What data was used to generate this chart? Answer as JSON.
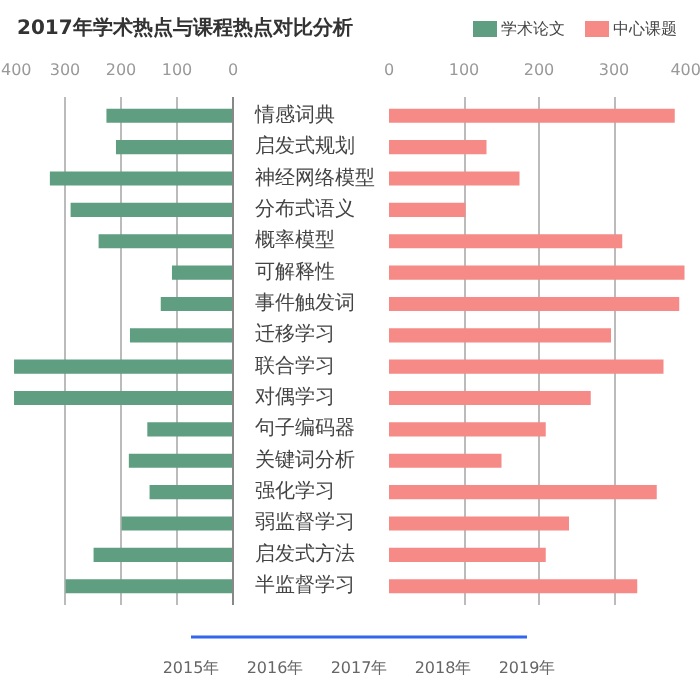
{
  "chart_data": [
    {
      "type": "bar",
      "orientation": "horizontal",
      "title": "2017年学术热点与课程热点对比分析",
      "categories": [
        "情感词典",
        "启发式规划",
        "神经网络模型",
        "分布式语义",
        "概率模型",
        "可解释性",
        "事件触发词",
        "迁移学习",
        "联合学习",
        "对偶学习",
        "句子编码器",
        "关键词分析",
        "强化学习",
        "弱监督学习",
        "启发式方法",
        "半监督学习"
      ],
      "xlim": [
        400,
        0
      ],
      "xticks": [
        400,
        300,
        200,
        100,
        0
      ],
      "series": [
        {
          "name": "学术论文",
          "color": "#5f9e80",
          "values": [
            226,
            209,
            327,
            290,
            240,
            109,
            129,
            184,
            391,
            391,
            153,
            186,
            149,
            199,
            249,
            299
          ]
        }
      ],
      "grid": "x",
      "legend": "top right",
      "annotations": [
        "2015年",
        "2016年",
        "2017年",
        "2018年",
        "2019年"
      ]
    },
    {
      "type": "bar",
      "orientation": "horizontal",
      "categories": [
        null,
        null,
        null,
        null,
        null,
        null,
        null,
        null,
        null,
        null,
        null,
        null,
        null,
        null,
        null,
        null
      ],
      "xlim": [
        0,
        400
      ],
      "xticks": [
        0,
        100,
        200,
        300,
        400
      ],
      "tick_labels": "x",
      "series": [
        {
          "name": "中心课题",
          "color": "#f58a87",
          "values": [
            381,
            130,
            174,
            102,
            311,
            394,
            387,
            296,
            366,
            269,
            209,
            150,
            357,
            240,
            209,
            331
          ]
        }
      ],
      "grid": "x",
      "legend": "top right"
    }
  ]
}
